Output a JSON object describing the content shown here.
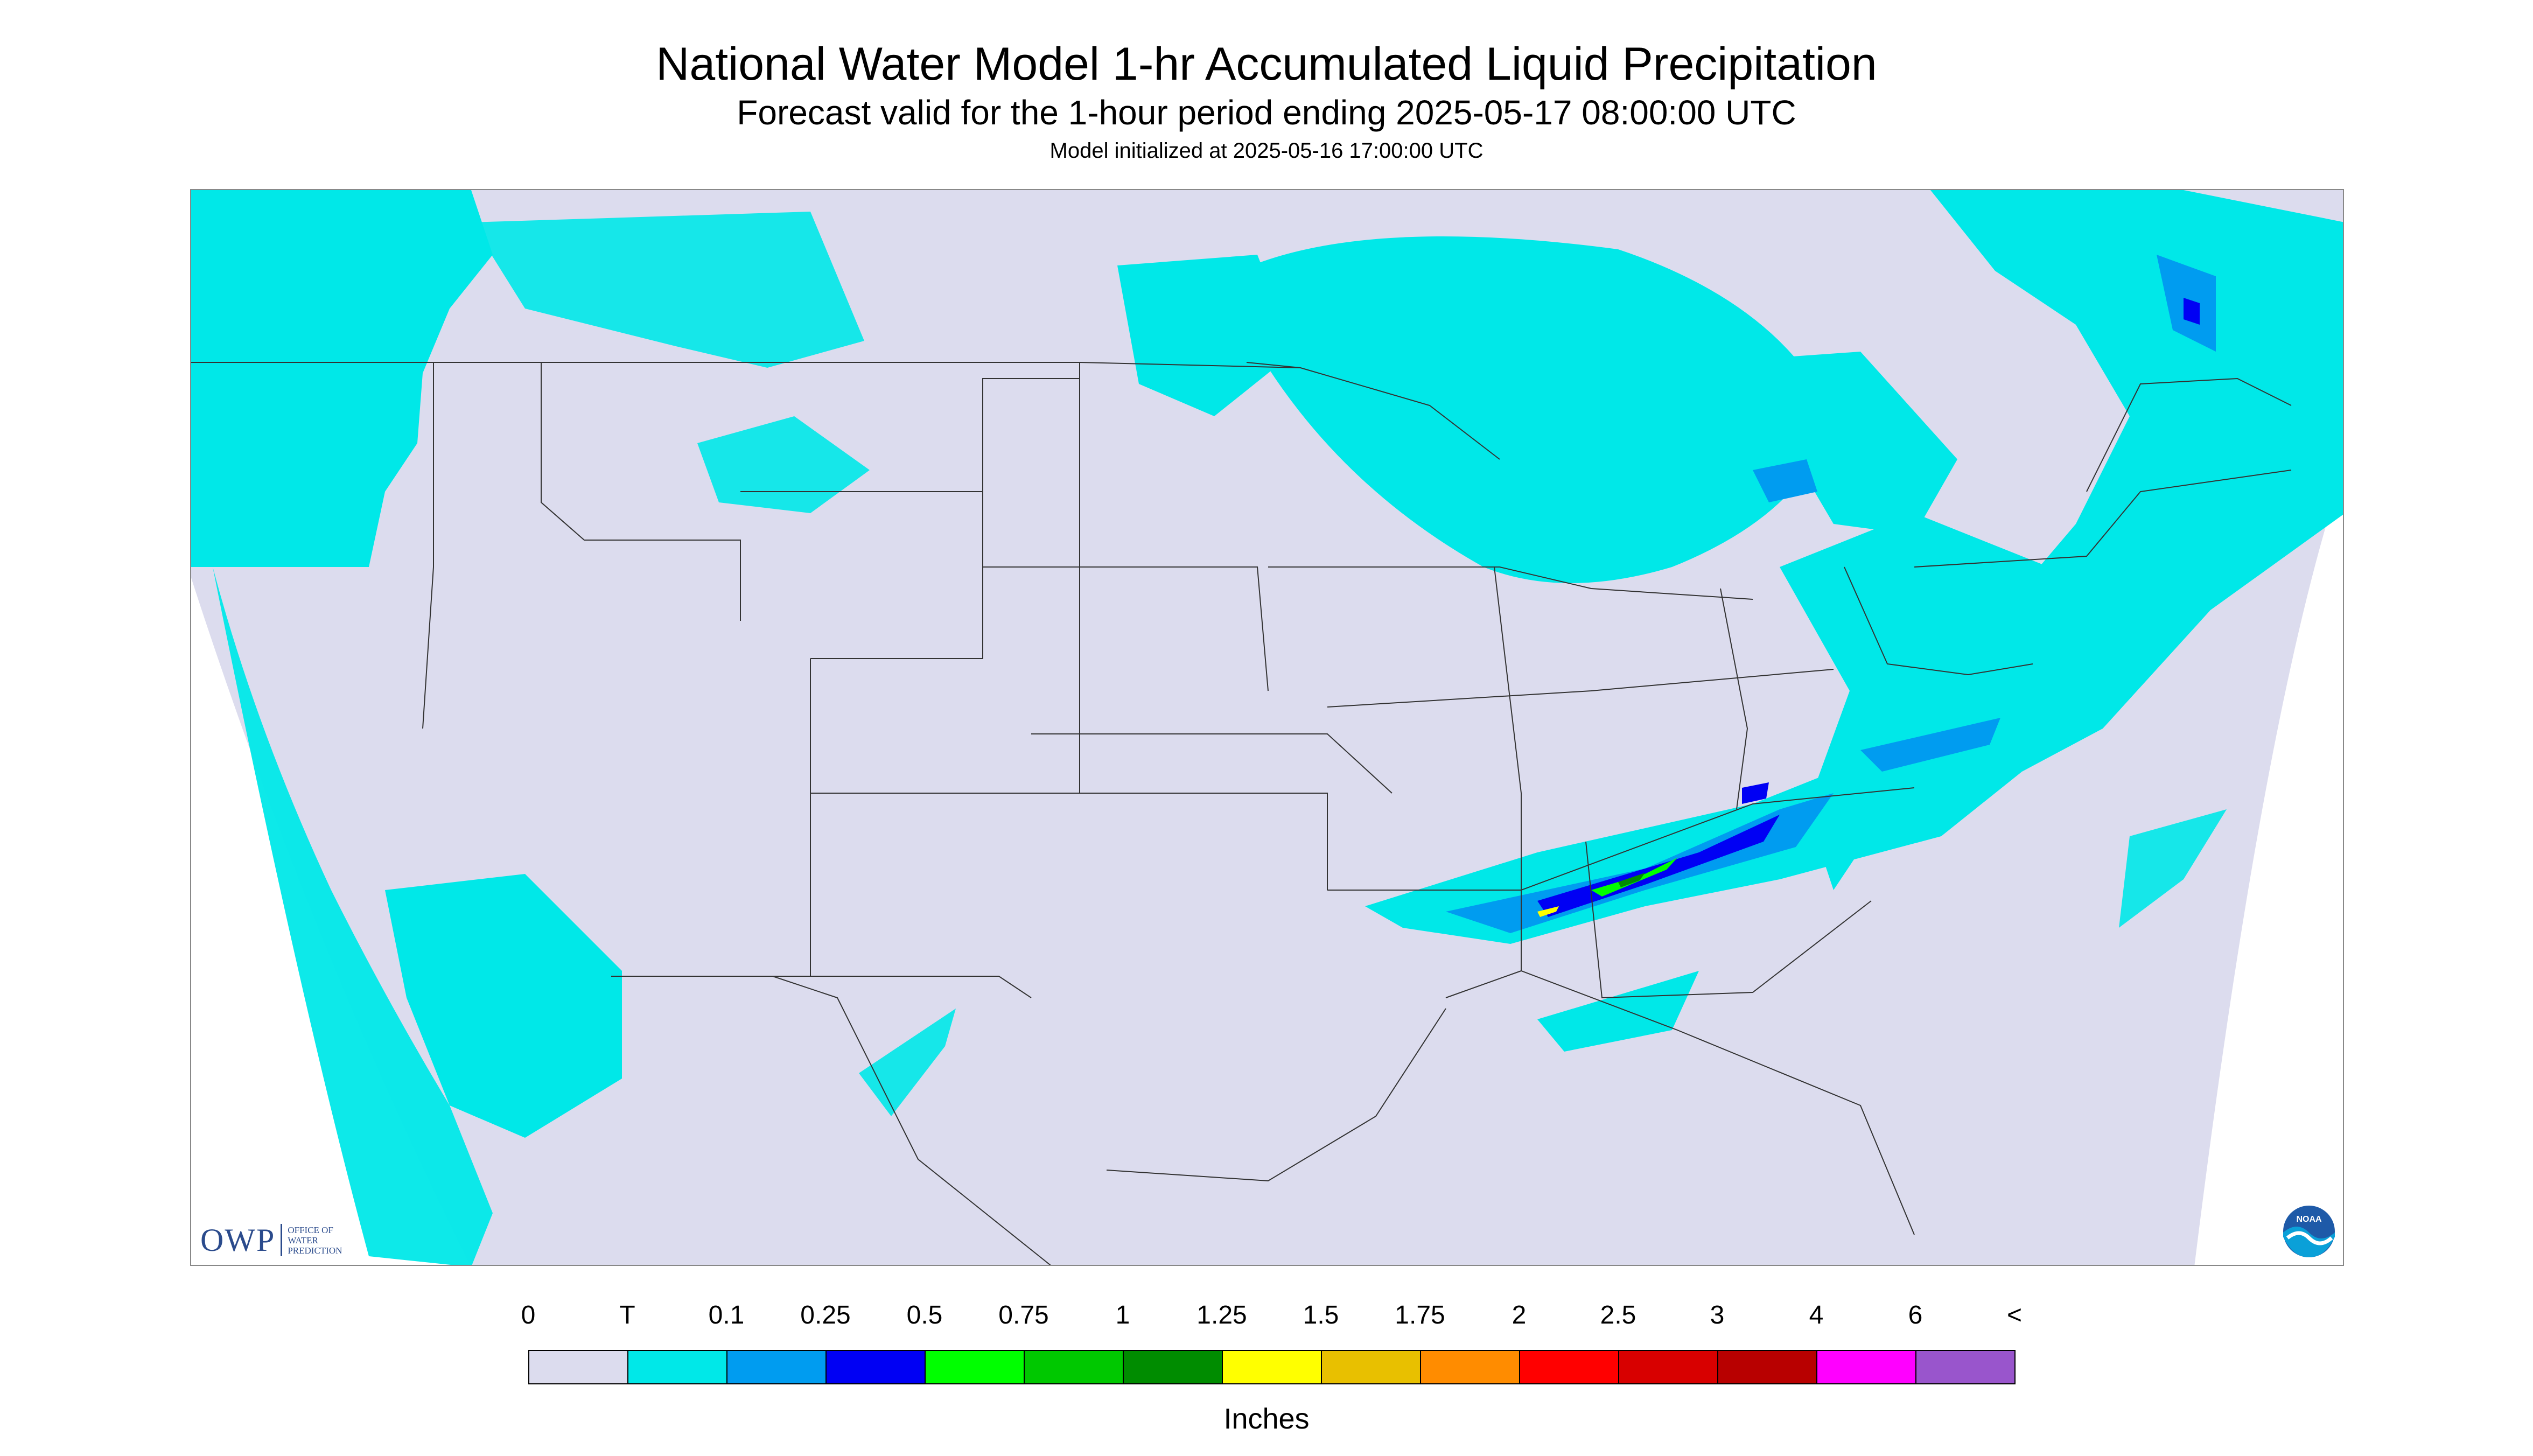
{
  "title": "National Water Model 1-hr Accumulated Liquid Precipitation",
  "subtitle": "Forecast valid for the 1-hour period ending 2025-05-17 08:00:00 UTC",
  "init_line": "Model initialized at 2025-05-16 17:00:00 UTC",
  "logos": {
    "owp_word": "OWP",
    "owp_sub": "OFFICE OF WATER PREDICTION",
    "noaa": "NOAA"
  },
  "legend": {
    "units": "Inches",
    "labels": [
      "0",
      "T",
      "0.1",
      "0.25",
      "0.5",
      "0.75",
      "1",
      "1.25",
      "1.5",
      "1.75",
      "2",
      "2.5",
      "3",
      "4",
      "6",
      "<"
    ],
    "colors": [
      "#dcdcee",
      "#00e8e8",
      "#009cf0",
      "#0000f4",
      "#00ff00",
      "#00c800",
      "#008c00",
      "#ffff00",
      "#e8c000",
      "#ff8c00",
      "#ff0000",
      "#d80000",
      "#b80000",
      "#ff00ff",
      "#9955cc"
    ]
  },
  "map": {
    "background_color": "#ffffff",
    "domain_color": "#dcdcee",
    "boundary_color": "#333333"
  }
}
